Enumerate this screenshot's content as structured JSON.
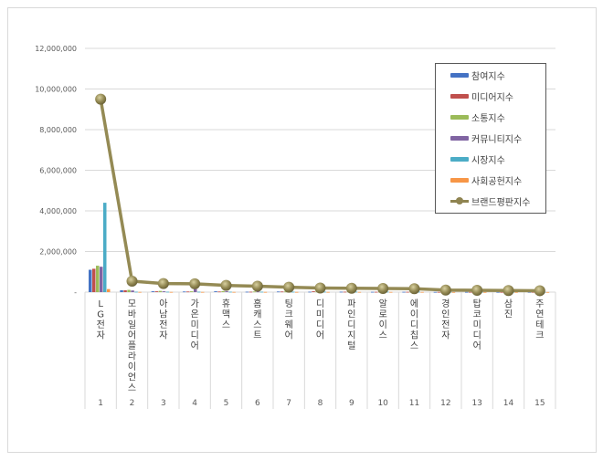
{
  "chart_data": {
    "type": "bar+line",
    "title": "",
    "xlabel": "",
    "ylabel": "",
    "ylim": [
      0,
      12000000
    ],
    "yticks": [
      "-",
      "2,000,000",
      "4,000,000",
      "6,000,000",
      "8,000,000",
      "10,000,000",
      "12,000,000"
    ],
    "grid": true,
    "legend_position": "right-top",
    "ranks": [
      "1",
      "2",
      "3",
      "4",
      "5",
      "6",
      "7",
      "8",
      "9",
      "10",
      "11",
      "12",
      "13",
      "14",
      "15"
    ],
    "categories": [
      "LG전자",
      "모바일어플라이언스",
      "아남전자",
      "가온미디어",
      "휴맥스",
      "홈캐스트",
      "팅크웨어",
      "디미디어",
      "파인디지털",
      "알로이스",
      "에이디칩스",
      "경인전자",
      "탑코미디어",
      "삼진",
      "주연테크"
    ],
    "series": [
      {
        "name": "참여지수",
        "type": "bar",
        "color": "#4472c4",
        "values": [
          1100000,
          90000,
          40000,
          30000,
          40000,
          20000,
          30000,
          20000,
          20000,
          15000,
          15000,
          10000,
          10000,
          8000,
          8000
        ]
      },
      {
        "name": "미디어지수",
        "type": "bar",
        "color": "#c0504d",
        "values": [
          1150000,
          90000,
          40000,
          30000,
          30000,
          20000,
          30000,
          40000,
          20000,
          15000,
          15000,
          10000,
          10000,
          8000,
          8000
        ]
      },
      {
        "name": "소통지수",
        "type": "bar",
        "color": "#9bbb59",
        "values": [
          1300000,
          110000,
          60000,
          40000,
          50000,
          30000,
          30000,
          30000,
          30000,
          20000,
          20000,
          10000,
          10000,
          8000,
          8000
        ]
      },
      {
        "name": "커뮤니티지수",
        "type": "bar",
        "color": "#8064a2",
        "values": [
          1250000,
          80000,
          40000,
          150000,
          40000,
          30000,
          30000,
          30000,
          20000,
          20000,
          20000,
          10000,
          10000,
          8000,
          8000
        ]
      },
      {
        "name": "시장지수",
        "type": "bar",
        "color": "#4bacc6",
        "values": [
          4400000,
          20000,
          20000,
          20000,
          20000,
          20000,
          20000,
          20000,
          20000,
          20000,
          20000,
          10000,
          10000,
          8000,
          8000
        ]
      },
      {
        "name": "사회공헌지수",
        "type": "bar",
        "color": "#f79646",
        "values": [
          150000,
          10000,
          10000,
          10000,
          10000,
          10000,
          10000,
          10000,
          10000,
          10000,
          10000,
          5000,
          5000,
          5000,
          5000
        ]
      },
      {
        "name": "브랜드평판지수",
        "type": "line",
        "color": "#948a54",
        "values": [
          9500000,
          540000,
          420000,
          410000,
          330000,
          290000,
          240000,
          200000,
          190000,
          180000,
          170000,
          100000,
          90000,
          80000,
          70000
        ]
      }
    ]
  },
  "legend": {
    "items": [
      {
        "label": "참여지수",
        "color": "#4472c4"
      },
      {
        "label": "미디어지수",
        "color": "#c0504d"
      },
      {
        "label": "소통지수",
        "color": "#9bbb59"
      },
      {
        "label": "커뮤니티지수",
        "color": "#8064a2"
      },
      {
        "label": "시장지수",
        "color": "#4bacc6"
      },
      {
        "label": "사회공헌지수",
        "color": "#f79646"
      },
      {
        "label": "브랜드평판지수",
        "color": "#948a54"
      }
    ]
  }
}
